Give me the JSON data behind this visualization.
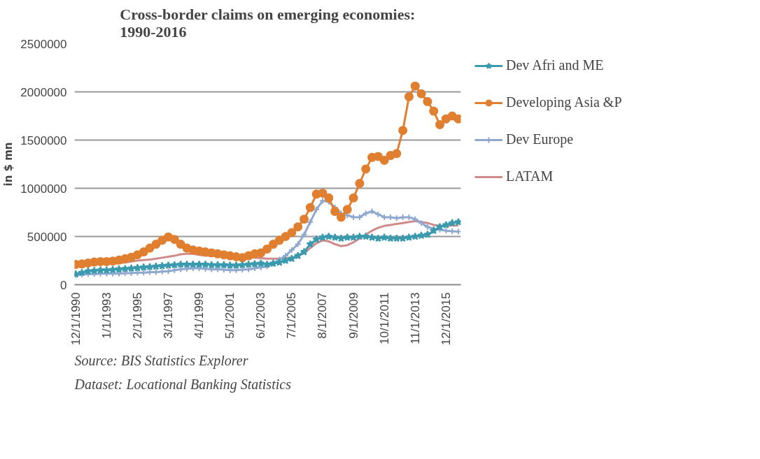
{
  "chart_data": {
    "type": "line",
    "title": "Cross-border claims on emerging economies:\n1990-2016",
    "ylabel": "in $ mn",
    "categories": [
      "12/1/1990",
      null,
      null,
      null,
      null,
      "1/1/1993",
      null,
      null,
      null,
      null,
      "2/1/1995",
      null,
      null,
      null,
      null,
      "3/1/1997",
      null,
      null,
      null,
      null,
      "4/1/1999",
      null,
      null,
      null,
      null,
      "5/1/2001",
      null,
      null,
      null,
      null,
      "6/1/2003",
      null,
      null,
      null,
      null,
      "7/1/2005",
      null,
      null,
      null,
      null,
      "8/1/2007",
      null,
      null,
      null,
      null,
      "9/1/2009",
      null,
      null,
      null,
      null,
      "10/1/2011",
      null,
      null,
      null,
      null,
      "11/1/2013",
      null,
      null,
      null,
      null,
      "12/1/2015",
      null,
      null
    ],
    "series": [
      {
        "name": "Dev Afri and ME",
        "color": "#3a9aae",
        "marker": "star",
        "values": [
          110000,
          125000,
          140000,
          145000,
          150000,
          150000,
          155000,
          160000,
          165000,
          170000,
          175000,
          180000,
          185000,
          190000,
          195000,
          200000,
          205000,
          210000,
          210000,
          210000,
          210000,
          210000,
          205000,
          205000,
          205000,
          200000,
          200000,
          205000,
          210000,
          215000,
          220000,
          210000,
          220000,
          230000,
          250000,
          270000,
          300000,
          340000,
          420000,
          470000,
          490000,
          500000,
          490000,
          480000,
          490000,
          490000,
          500000,
          500000,
          490000,
          480000,
          490000,
          480000,
          480000,
          480000,
          490000,
          500000,
          510000,
          520000,
          560000,
          600000,
          620000,
          640000,
          650000
        ]
      },
      {
        "name": "Developing Asia &P",
        "color": "#e07f30",
        "marker": "circle",
        "values": [
          210000,
          215000,
          225000,
          235000,
          240000,
          240000,
          245000,
          255000,
          270000,
          285000,
          310000,
          340000,
          380000,
          420000,
          460000,
          495000,
          470000,
          420000,
          380000,
          360000,
          350000,
          340000,
          330000,
          320000,
          310000,
          300000,
          290000,
          280000,
          300000,
          320000,
          330000,
          370000,
          420000,
          460000,
          500000,
          540000,
          600000,
          680000,
          800000,
          940000,
          950000,
          900000,
          760000,
          700000,
          780000,
          900000,
          1050000,
          1200000,
          1320000,
          1330000,
          1290000,
          1340000,
          1360000,
          1600000,
          1950000,
          2060000,
          1980000,
          1900000,
          1800000,
          1660000,
          1720000,
          1750000,
          1720000
        ]
      },
      {
        "name": "Dev Europe",
        "color": "#8fa8d0",
        "marker": "cross",
        "values": [
          100000,
          105000,
          110000,
          110000,
          115000,
          115000,
          115000,
          115000,
          120000,
          120000,
          125000,
          125000,
          130000,
          130000,
          135000,
          140000,
          150000,
          160000,
          165000,
          170000,
          170000,
          165000,
          160000,
          160000,
          155000,
          150000,
          150000,
          155000,
          160000,
          170000,
          180000,
          190000,
          220000,
          260000,
          300000,
          360000,
          420000,
          520000,
          650000,
          780000,
          870000,
          860000,
          800000,
          740000,
          720000,
          700000,
          700000,
          740000,
          760000,
          730000,
          700000,
          700000,
          690000,
          700000,
          700000,
          680000,
          640000,
          600000,
          580000,
          570000,
          560000,
          555000,
          550000
        ]
      },
      {
        "name": "LATAM",
        "color": "#d08a8a",
        "marker": "none",
        "values": [
          200000,
          205000,
          210000,
          210000,
          215000,
          215000,
          220000,
          225000,
          230000,
          240000,
          250000,
          255000,
          260000,
          270000,
          280000,
          290000,
          300000,
          315000,
          320000,
          320000,
          310000,
          300000,
          300000,
          300000,
          295000,
          290000,
          285000,
          280000,
          280000,
          280000,
          275000,
          270000,
          270000,
          270000,
          275000,
          280000,
          300000,
          330000,
          380000,
          430000,
          460000,
          450000,
          420000,
          400000,
          410000,
          440000,
          480000,
          520000,
          560000,
          590000,
          610000,
          620000,
          630000,
          640000,
          650000,
          660000,
          650000,
          640000,
          620000,
          610000,
          610000,
          615000,
          615000
        ]
      }
    ],
    "ylim": [
      0,
      2500000
    ],
    "yticks": [
      0,
      500000,
      1000000,
      1500000,
      2000000,
      2500000
    ],
    "grid": "y",
    "legend": "right",
    "line_style": "solid",
    "annotations": [
      "Source: BIS Statistics Explorer",
      "Dataset: Locational Banking Statistics"
    ]
  }
}
